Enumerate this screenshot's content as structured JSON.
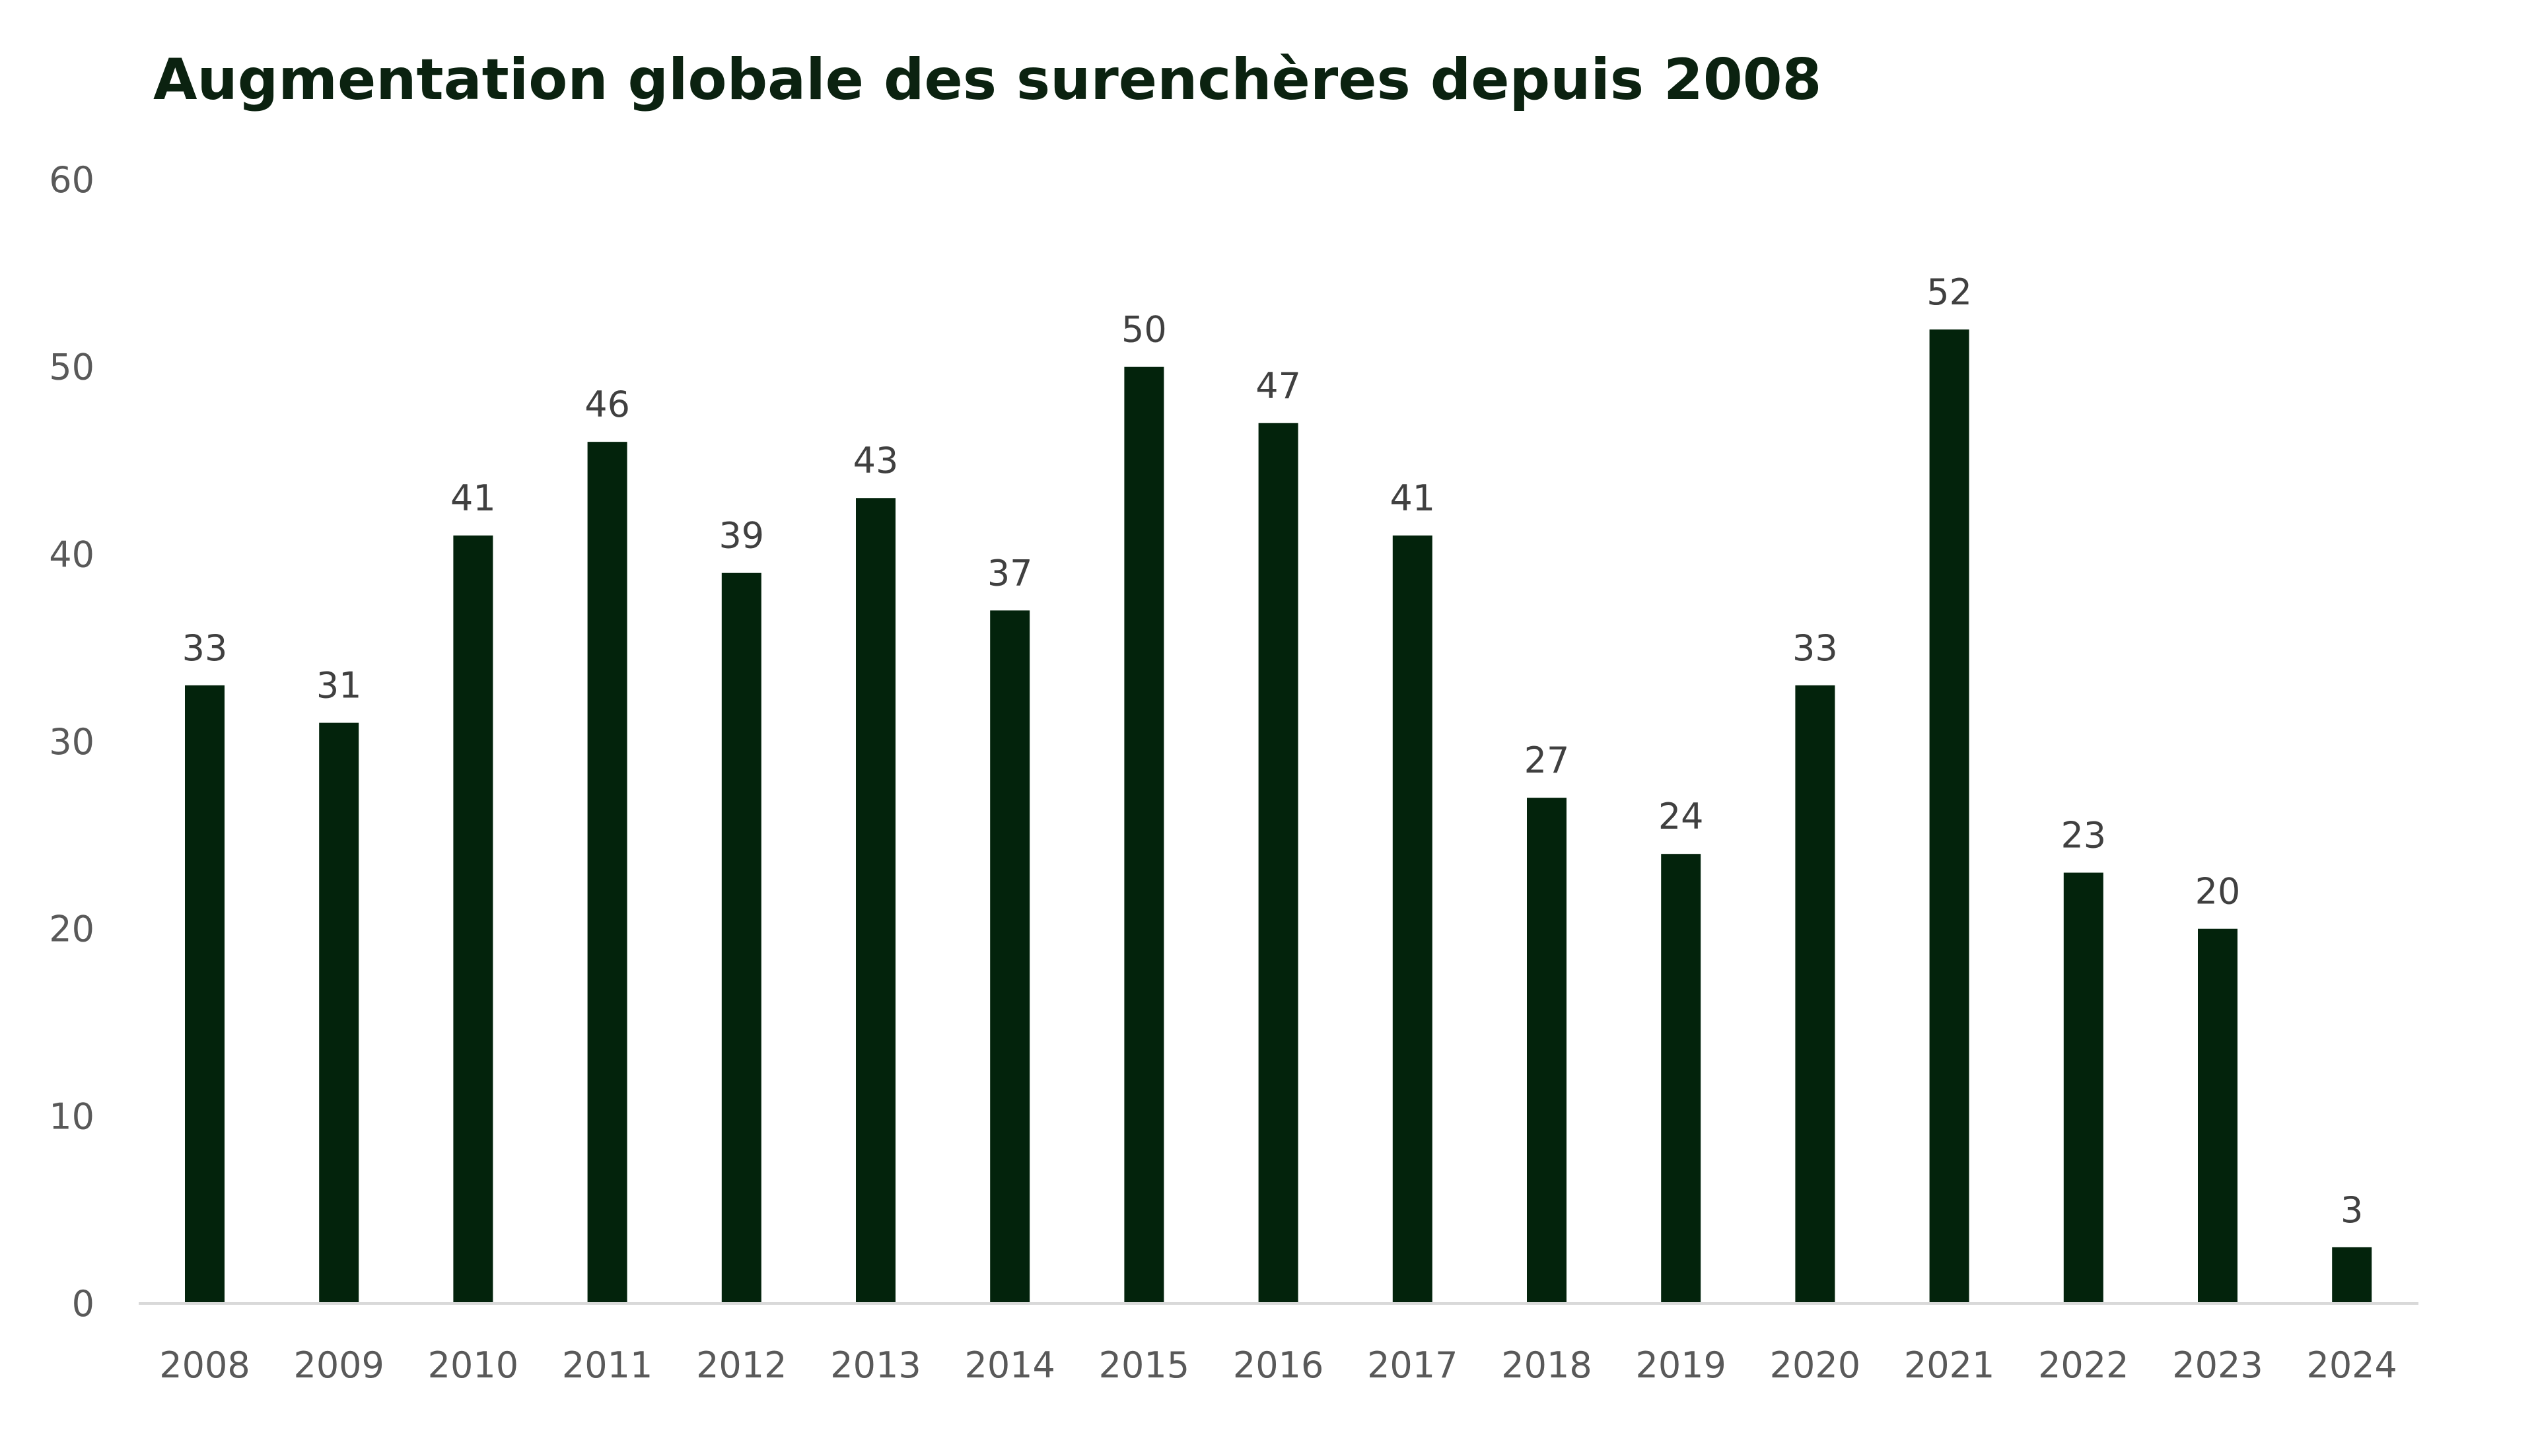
{
  "chart_data": {
    "type": "bar",
    "title": "Augmentation globale des surenchères depuis 2008",
    "xlabel": "",
    "ylabel": "",
    "categories": [
      "2008",
      "2009",
      "2010",
      "2011",
      "2012",
      "2013",
      "2014",
      "2015",
      "2016",
      "2017",
      "2018",
      "2019",
      "2020",
      "2021",
      "2022",
      "2023",
      "2024"
    ],
    "values": [
      33,
      31,
      41,
      46,
      39,
      43,
      37,
      50,
      47,
      41,
      27,
      24,
      33,
      52,
      23,
      20,
      3
    ],
    "ylim": [
      0,
      60
    ],
    "yticks": [
      0,
      10,
      20,
      30,
      40,
      50,
      60
    ],
    "grid": false,
    "legend": "none",
    "data_labels": true,
    "colors": {
      "bar": "#03230c",
      "title": "#0b2210",
      "axis": "#d9d9d9"
    }
  }
}
